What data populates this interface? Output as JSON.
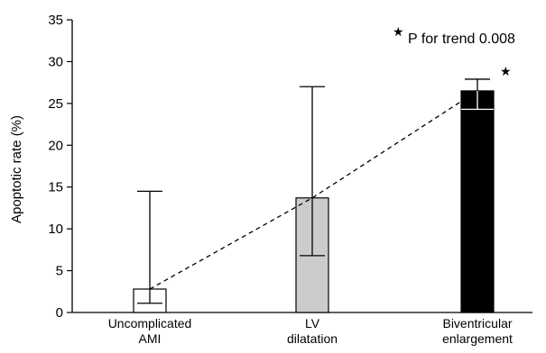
{
  "chart_data": {
    "type": "bar",
    "categories": [
      [
        "Uncomplicated",
        "AMI"
      ],
      [
        "LV",
        "dilatation"
      ],
      [
        "Biventricular",
        "enlargement"
      ]
    ],
    "values": [
      2.8,
      13.7,
      26.5
    ],
    "error_low": [
      1.1,
      6.8,
      24.3
    ],
    "error_high": [
      14.5,
      27.0,
      27.9
    ],
    "bar_colors": [
      "#ffffff",
      "#cccccc",
      "#000000"
    ],
    "ylabel": "Apoptotic rate (%)",
    "ylim": [
      0,
      35
    ],
    "yticks": [
      0,
      5,
      10,
      15,
      20,
      25,
      30,
      35
    ],
    "grid": false,
    "trend_line": "dashed",
    "annotation": "P for trend 0.008",
    "annotation_marker": "★",
    "significance_marker": "★"
  }
}
